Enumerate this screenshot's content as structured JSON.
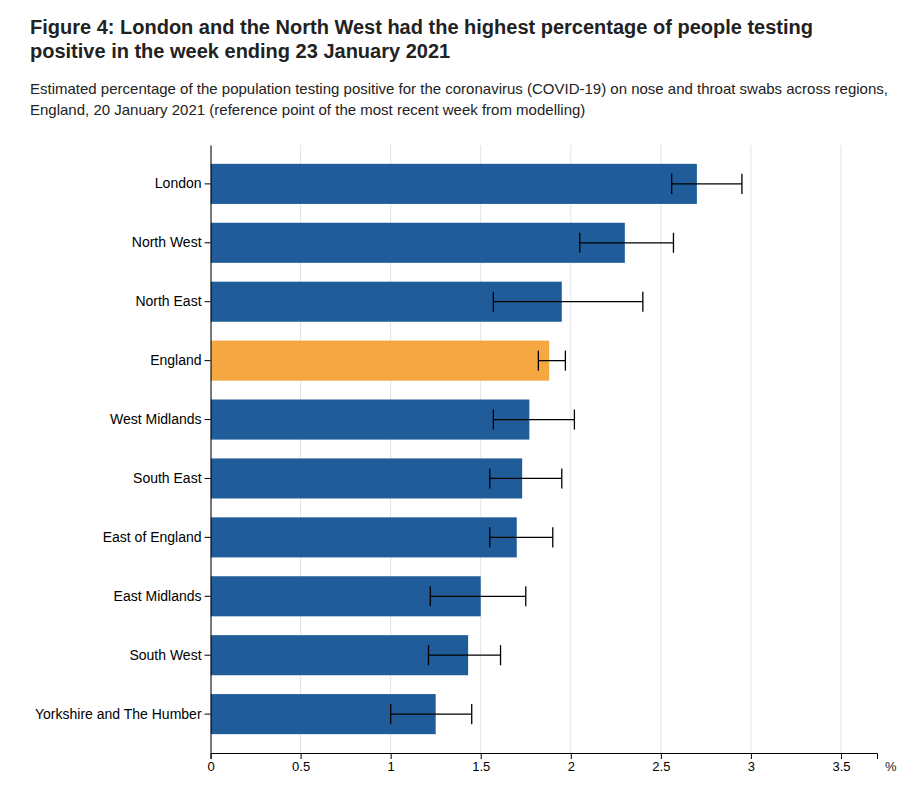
{
  "chart_data": {
    "type": "bar",
    "orientation": "horizontal",
    "title": "Figure 4: London and the North West had the highest percentage of people testing positive in the week ending 23 January 2021",
    "subtitle": "Estimated percentage of the population testing positive for the coronavirus (COVID-19) on nose and throat swabs across regions, England, 20 January 2021 (reference point of the most recent week from modelling)",
    "categories": [
      "Yorkshire and The Humber",
      "South West",
      "East Midlands",
      "East of England",
      "South East",
      "West Midlands",
      "England",
      "North East",
      "North West",
      "London"
    ],
    "values": [
      1.25,
      1.43,
      1.5,
      1.7,
      1.73,
      1.77,
      1.88,
      1.95,
      2.3,
      2.7
    ],
    "err_minus": [
      0.25,
      0.22,
      0.28,
      0.15,
      0.18,
      0.2,
      0.06,
      0.38,
      0.25,
      0.14
    ],
    "err_plus": [
      0.2,
      0.18,
      0.25,
      0.2,
      0.22,
      0.25,
      0.09,
      0.45,
      0.27,
      0.25
    ],
    "colors": [
      "#1F5C99",
      "#1F5C99",
      "#1F5C99",
      "#1F5C99",
      "#1F5C99",
      "#1F5C99",
      "#F5A742",
      "#1F5C99",
      "#1F5C99",
      "#1F5C99"
    ],
    "xlabel": "%",
    "xlim": [
      0,
      3.7
    ],
    "xticks": [
      0,
      0.5,
      1,
      1.5,
      2,
      2.5,
      3,
      3.5
    ],
    "grid": true
  }
}
